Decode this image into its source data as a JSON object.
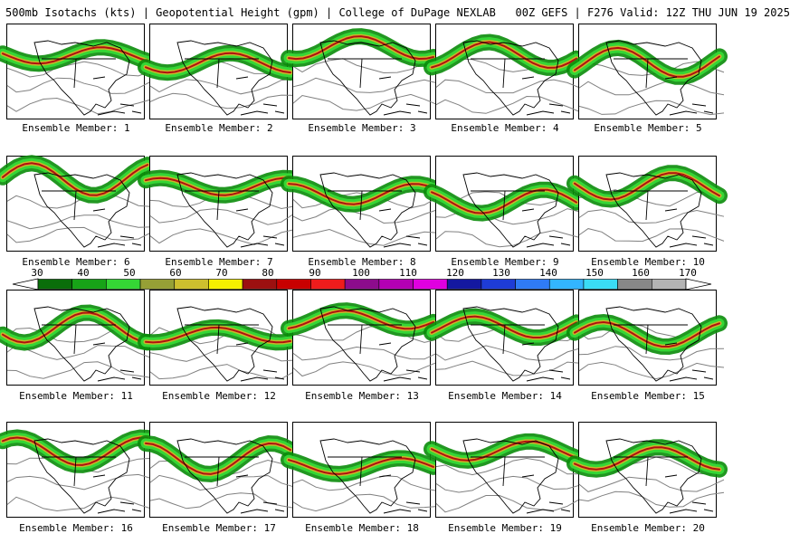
{
  "header": {
    "title": "500mb Isotachs (kts) | Geopotential Height (gpm) | College of DuPage NEXLAB   00Z GEFS | F276 Valid: 12Z THU JUN 19 2025"
  },
  "members": [
    "Ensemble Member: 1",
    "Ensemble Member: 2",
    "Ensemble Member: 3",
    "Ensemble Member: 4",
    "Ensemble Member: 5",
    "Ensemble Member: 6",
    "Ensemble Member: 7",
    "Ensemble Member: 8",
    "Ensemble Member: 9",
    "Ensemble Member: 10",
    "Ensemble Member: 11",
    "Ensemble Member: 12",
    "Ensemble Member: 13",
    "Ensemble Member: 14",
    "Ensemble Member: 15",
    "Ensemble Member: 16",
    "Ensemble Member: 17",
    "Ensemble Member: 18",
    "Ensemble Member: 19",
    "Ensemble Member: 20"
  ],
  "colorbar": {
    "labels": [
      "30",
      "40",
      "50",
      "60",
      "70",
      "80",
      "90",
      "100",
      "110",
      "120",
      "130",
      "140",
      "150",
      "160",
      "170"
    ],
    "colors": [
      "#0a6e0a",
      "#17a317",
      "#35d635",
      "#96a036",
      "#cdbf2e",
      "#f5f000",
      "#9c1010",
      "#c80000",
      "#ee1c1c",
      "#8c0c8c",
      "#b400b4",
      "#e000e0",
      "#1418a0",
      "#1e3cd6",
      "#2f7bf5",
      "#33b5ff",
      "#3adcf5",
      "#888888",
      "#b4b4b4"
    ]
  },
  "map_colors": {
    "coast": "#000000",
    "height_contour": "#808080",
    "jet_low": "#0a8c0a",
    "jet_mid": "#35d635",
    "jet_high": "#c9b52a",
    "jet_core": "#b01010"
  }
}
